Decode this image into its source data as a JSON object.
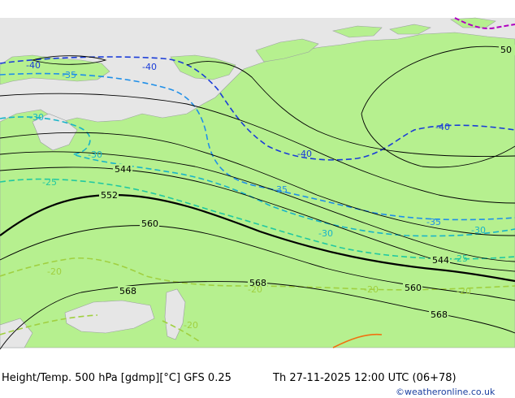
{
  "map": {
    "title": "Height/Temp. 500 hPa [gdmp][°C] GFS 0.25",
    "valid_time": "Th 27-11-2025 12:00 UTC (06+78)",
    "credit": "©weatheronline.co.uk",
    "colors": {
      "land": "#b6f08f",
      "sea": "#e6e6e6",
      "land_cold": "#c8f0a8",
      "height_contour": "#000000",
      "temp_minus40": "#1a3cd8",
      "temp_minus35": "#1f8fe8",
      "temp_minus30": "#18b4c8",
      "temp_minus25": "#20c8a0",
      "temp_minus20": "#a0d040",
      "temp_minus15": "#e0a030",
      "temp_minus10": "#f07010",
      "border": "#a0a0a0",
      "purple_contour": "#b000c0"
    },
    "height_labels": [
      "544",
      "552",
      "560",
      "568",
      "568",
      "544",
      "560",
      "568",
      "50"
    ],
    "temp_labels": [
      "-40",
      "-40",
      "-35",
      "-30",
      "-30",
      "-25",
      "-40",
      "-40",
      "-35",
      "-35",
      "-30",
      "-30",
      "-25",
      "-20",
      "-20",
      "-20",
      "-20",
      "-20"
    ]
  }
}
